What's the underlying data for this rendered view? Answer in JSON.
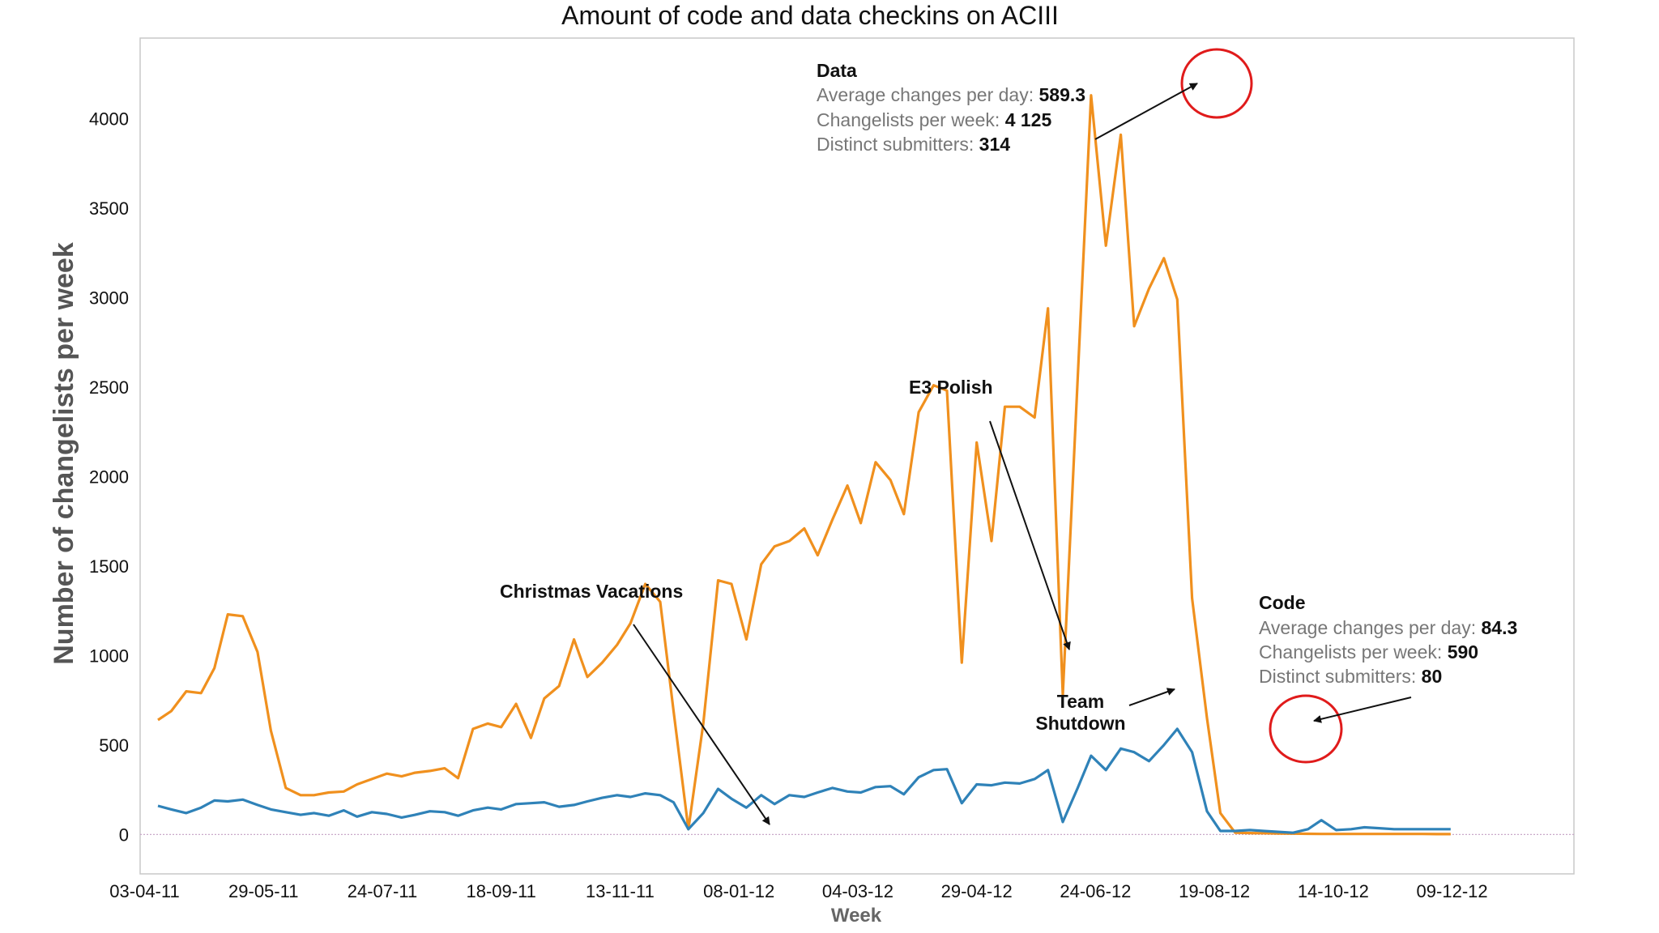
{
  "chart_data": {
    "type": "line",
    "title": "Amount of code and data checkins on ACIII",
    "xlabel": "Week",
    "ylabel": "Number of changelists per week",
    "ylim": [
      -220,
      4450
    ],
    "yticks": [
      0,
      500,
      1000,
      1500,
      2000,
      2500,
      3000,
      3500,
      4000
    ],
    "xtick_labels": [
      "03-04-11",
      "29-05-11",
      "24-07-11",
      "18-09-11",
      "13-11-11",
      "08-01-12",
      "04-03-12",
      "29-04-12",
      "24-06-12",
      "19-08-12",
      "14-10-12",
      "09-12-12"
    ],
    "x_domain_weeks": [
      0,
      96.5
    ],
    "series": [
      {
        "name": "Data",
        "color": "#f0901e",
        "x": [
          1.2,
          2.1,
          3.1,
          4.1,
          5.0,
          5.9,
          6.9,
          7.9,
          8.8,
          9.8,
          10.8,
          11.7,
          12.7,
          13.7,
          14.6,
          15.6,
          16.6,
          17.6,
          18.5,
          19.5,
          20.5,
          21.4,
          22.4,
          23.4,
          24.3,
          25.3,
          26.3,
          27.2,
          28.2,
          29.2,
          30.1,
          31.1,
          32.1,
          33.0,
          34.0,
          35.0,
          35.9,
          36.9,
          37.9,
          38.9,
          39.8,
          40.8,
          41.8,
          42.7,
          43.7,
          44.7,
          45.6,
          46.6,
          47.6,
          48.5,
          49.5,
          50.5,
          51.4,
          52.4,
          53.4,
          54.3,
          55.3,
          56.3,
          57.3,
          58.2,
          59.2,
          60.2,
          61.1,
          62.1,
          63.1,
          64.0,
          65.0,
          66.0,
          66.9,
          67.9,
          68.9,
          69.8,
          70.8,
          71.8,
          72.7,
          73.7,
          74.7,
          75.6,
          76.6,
          77.6,
          78.6,
          79.5,
          80.5,
          81.5,
          82.4,
          83.4,
          84.4,
          85.3,
          86.3,
          87.3,
          88.2
        ],
        "values": [
          640,
          690,
          800,
          790,
          930,
          1230,
          1220,
          1020,
          580,
          260,
          220,
          220,
          235,
          240,
          280,
          310,
          340,
          325,
          345,
          355,
          370,
          315,
          590,
          620,
          600,
          730,
          540,
          760,
          830,
          1090,
          880,
          960,
          1060,
          1180,
          1400,
          1300,
          690,
          30,
          620,
          1420,
          1400,
          1090,
          1510,
          1610,
          1640,
          1710,
          1560,
          1760,
          1950,
          1740,
          2080,
          1980,
          1790,
          2360,
          2510,
          2480,
          960,
          2190,
          1640,
          2390,
          2390,
          2330,
          2940,
          780,
          2550,
          4130,
          3290,
          3910,
          2840,
          3050,
          3220,
          2990,
          1320,
          650,
          120,
          10,
          8,
          7,
          6,
          5,
          4,
          3,
          3,
          3,
          3,
          3,
          3,
          3,
          3,
          2,
          2
        ],
        "peak": 4125,
        "stats": {
          "avg_per_day": "589.3",
          "per_week": "4 125",
          "submitters": "314"
        }
      },
      {
        "name": "Code",
        "color": "#2f82b8",
        "x": [
          1.2,
          2.1,
          3.1,
          4.1,
          5.0,
          5.9,
          6.9,
          7.9,
          8.8,
          9.8,
          10.8,
          11.7,
          12.7,
          13.7,
          14.6,
          15.6,
          16.6,
          17.6,
          18.5,
          19.5,
          20.5,
          21.4,
          22.4,
          23.4,
          24.3,
          25.3,
          26.3,
          27.2,
          28.2,
          29.2,
          30.1,
          31.1,
          32.1,
          33.0,
          34.0,
          35.0,
          35.9,
          36.9,
          37.9,
          38.9,
          39.8,
          40.8,
          41.8,
          42.7,
          43.7,
          44.7,
          45.6,
          46.6,
          47.6,
          48.5,
          49.5,
          50.5,
          51.4,
          52.4,
          53.4,
          54.3,
          55.3,
          56.3,
          57.3,
          58.2,
          59.2,
          60.2,
          61.1,
          62.1,
          63.1,
          64.0,
          65.0,
          66.0,
          66.9,
          67.9,
          68.9,
          69.8,
          70.8,
          71.8,
          72.7,
          73.7,
          74.7,
          75.6,
          76.6,
          77.6,
          78.6,
          79.5,
          80.5,
          81.5,
          82.4,
          83.4,
          84.4,
          85.3,
          86.3,
          87.3,
          88.2
        ],
        "values": [
          160,
          140,
          120,
          150,
          190,
          185,
          195,
          165,
          140,
          125,
          110,
          120,
          105,
          135,
          100,
          125,
          115,
          95,
          110,
          130,
          125,
          105,
          135,
          150,
          140,
          170,
          175,
          180,
          155,
          165,
          185,
          205,
          220,
          210,
          230,
          220,
          180,
          30,
          120,
          255,
          200,
          150,
          220,
          170,
          220,
          210,
          235,
          260,
          240,
          235,
          265,
          270,
          225,
          320,
          360,
          365,
          175,
          280,
          275,
          290,
          285,
          310,
          360,
          70,
          260,
          440,
          360,
          480,
          460,
          410,
          500,
          590,
          460,
          130,
          20,
          20,
          25,
          20,
          15,
          10,
          30,
          80,
          25,
          30,
          40,
          35,
          30,
          30,
          30,
          30,
          30
        ],
        "peak": 590,
        "stats": {
          "avg_per_day": "84.3",
          "per_week": "590",
          "submitters": "80"
        }
      }
    ],
    "annotations": {
      "data_box": {
        "heading": "Data",
        "avg_label": "Average changes per day: ",
        "per_week_label": "Changelists per week: ",
        "submitters_label": "Distinct submitters: "
      },
      "code_box": {
        "heading": "Code",
        "avg_label": "Average changes per day: ",
        "per_week_label": "Changelists per week: ",
        "submitters_label": "Distinct submitters: "
      },
      "christmas": "Christmas Vacations",
      "e3": "E3 Polish",
      "shutdown_line1": "Team",
      "shutdown_line2": "Shutdown"
    }
  }
}
